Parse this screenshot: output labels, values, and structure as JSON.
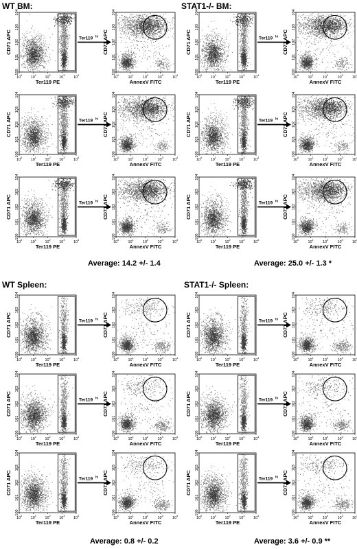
{
  "figure": {
    "quadrants": [
      {
        "title": "WT BM:",
        "average": "Average: 14.2 +/- 1.4",
        "tissue": "bm"
      },
      {
        "title": "STAT1-/- BM:",
        "average": "Average: 25.0 +/- 1.3 *",
        "tissue": "bm"
      },
      {
        "title": "WT Spleen:",
        "average": "Average: 0.8 +/- 0.2",
        "tissue": "spleen"
      },
      {
        "title": "STAT1-/- Spleen:",
        "average": "Average: 3.6 +/- 0.9 **",
        "tissue": "spleen"
      }
    ],
    "labels": {
      "left_ylabel": "CD71 APC",
      "left_xlabel": "Ter119 PE",
      "right_ylabel": "CD71 APC",
      "right_xlabel": "AnnexV FITC",
      "arrow_label_main": "Ter119",
      "arrow_label_sup": "hi",
      "ticks": [
        "10",
        "10",
        "10",
        "10",
        "10"
      ],
      "tick_exps": [
        "0",
        "1",
        "2",
        "3",
        "4"
      ]
    },
    "colors": {
      "dots": "#7a7a7a",
      "dense": "#3a3a3a",
      "frame": "#000000"
    }
  }
}
